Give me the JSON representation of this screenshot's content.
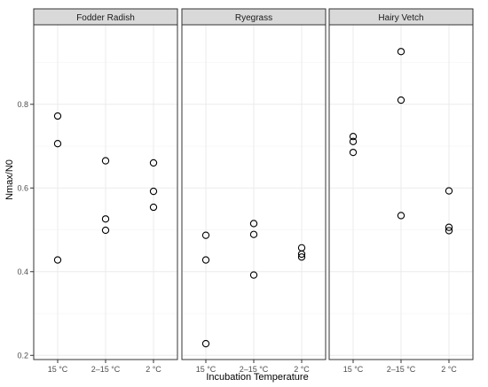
{
  "chart_data": {
    "type": "scatter",
    "xlabel": "Incubation Temperature",
    "ylabel": "Nmax/N0",
    "categories": [
      "15 °C",
      "2–15 °C",
      "2 °C"
    ],
    "ylim": [
      0.19,
      0.99
    ],
    "yticks": [
      0.2,
      0.4,
      0.6,
      0.8
    ],
    "grid": true,
    "marker": "open-circle",
    "panels": [
      {
        "name": "Fodder Radish",
        "points": [
          {
            "x": "15 °C",
            "y": 0.772
          },
          {
            "x": "15 °C",
            "y": 0.706
          },
          {
            "x": "15 °C",
            "y": 0.428
          },
          {
            "x": "2–15 °C",
            "y": 0.665
          },
          {
            "x": "2–15 °C",
            "y": 0.526
          },
          {
            "x": "2–15 °C",
            "y": 0.499
          },
          {
            "x": "2 °C",
            "y": 0.66
          },
          {
            "x": "2 °C",
            "y": 0.592
          },
          {
            "x": "2 °C",
            "y": 0.554
          }
        ]
      },
      {
        "name": "Ryegrass",
        "points": [
          {
            "x": "15 °C",
            "y": 0.487
          },
          {
            "x": "15 °C",
            "y": 0.428
          },
          {
            "x": "15 °C",
            "y": 0.228
          },
          {
            "x": "2–15 °C",
            "y": 0.515
          },
          {
            "x": "2–15 °C",
            "y": 0.489
          },
          {
            "x": "2–15 °C",
            "y": 0.392
          },
          {
            "x": "2 °C",
            "y": 0.457
          },
          {
            "x": "2 °C",
            "y": 0.442
          },
          {
            "x": "2 °C",
            "y": 0.435
          }
        ]
      },
      {
        "name": "Hairy Vetch",
        "points": [
          {
            "x": "15 °C",
            "y": 0.723
          },
          {
            "x": "15 °C",
            "y": 0.711
          },
          {
            "x": "15 °C",
            "y": 0.685
          },
          {
            "x": "2–15 °C",
            "y": 0.926
          },
          {
            "x": "2–15 °C",
            "y": 0.81
          },
          {
            "x": "2–15 °C",
            "y": 0.534
          },
          {
            "x": "2 °C",
            "y": 0.593
          },
          {
            "x": "2 °C",
            "y": 0.506
          },
          {
            "x": "2 °C",
            "y": 0.498
          }
        ]
      }
    ]
  }
}
